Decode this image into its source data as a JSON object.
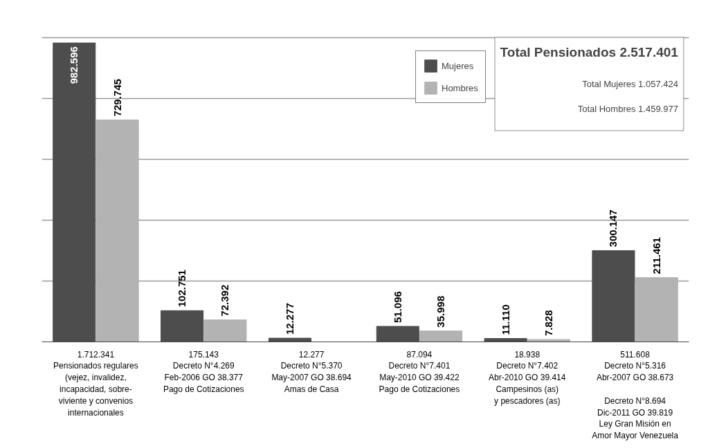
{
  "chart_data": {
    "type": "bar",
    "categories": [
      "1.712.341\nPensionados regulares\n(vejez, invalidez,\nincapacidad, sobre-\nviviente y convenios\ninternacionales",
      "175.143\nDecreto N°4.269\nFeb-2006 GO 38.377\nPago de Cotizaciones",
      "12.277\nDecreto N°5.370\nMay-2007 GO 38.694\nAmas de Casa",
      "87.094\nDecreto N°7.401\nMay-2010 GO 39.422\nPago de Cotizaciones",
      "18.938\nDecreto N°7.402\nAbr-2010 GO 39.414\nCampesinos (as)\ny pescadores (as)",
      "511.608\nDecreto N°5.316\nAbr-2007 GO 38.673\n\nDecreto N°8.694\nDic-2011 GO 39.819\nLey Gran Misión en\nAmor Mayor Venezuela"
    ],
    "series": [
      {
        "name": "Mujeres",
        "color": "#4d4d4d",
        "values": [
          982596,
          102751,
          12277,
          51096,
          11110,
          300147
        ],
        "value_labels": [
          "982.596",
          "102.751",
          "12.277",
          "51.096",
          "11.110",
          "300.147"
        ]
      },
      {
        "name": "Hombres",
        "color": "#b3b3b3",
        "values": [
          729745,
          72392,
          null,
          35998,
          7828,
          211461
        ],
        "value_labels": [
          "729.745",
          "72.392",
          null,
          "35.998",
          "7.828",
          "211.461"
        ]
      }
    ],
    "grid": "y",
    "legend": "top right",
    "tick_labels": "x",
    "annotations": [
      "Total Pensionados 2.517.401",
      "Total Mujeres 1.057.424",
      "Total Hombres 1.459.977"
    ]
  }
}
